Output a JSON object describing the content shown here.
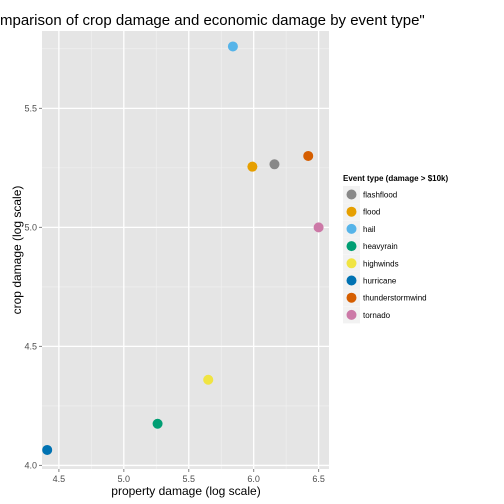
{
  "chart_data": {
    "type": "scatter",
    "title": "mparison of crop damage and economic damage by event type\"",
    "xlabel": "property damage (log scale)",
    "ylabel": "crop damage (log scale)",
    "xlim": [
      4.37,
      6.58
    ],
    "ylim": [
      3.985,
      5.825
    ],
    "x_ticks": [
      4.5,
      5.0,
      5.5,
      6.0,
      6.5
    ],
    "x_tick_labels": [
      "4.5",
      "5.0",
      "5.5",
      "6.0",
      "6.5"
    ],
    "y_ticks": [
      4.0,
      4.5,
      5.0,
      5.5
    ],
    "y_tick_labels": [
      "4.0",
      "4.5",
      "5.0",
      "5.5"
    ],
    "grid": true,
    "panel_background": "#e5e5e5",
    "legend": {
      "title": "Event type (damage > $10k)",
      "position": "right"
    },
    "series": [
      {
        "name": "flashflood",
        "color": "#888888",
        "x": 6.16,
        "y": 5.265
      },
      {
        "name": "flood",
        "color": "#e69f00",
        "x": 5.99,
        "y": 5.255
      },
      {
        "name": "hail",
        "color": "#56b4e9",
        "x": 5.84,
        "y": 5.76
      },
      {
        "name": "heavyrain",
        "color": "#009e73",
        "x": 5.26,
        "y": 4.175
      },
      {
        "name": "highwinds",
        "color": "#f0e442",
        "x": 5.65,
        "y": 4.36
      },
      {
        "name": "hurricane",
        "color": "#0072b2",
        "x": 4.41,
        "y": 4.065
      },
      {
        "name": "thunderstormwind",
        "color": "#d55e00",
        "x": 6.42,
        "y": 5.3
      },
      {
        "name": "tornado",
        "color": "#cc79a7",
        "x": 6.5,
        "y": 5.0
      }
    ]
  }
}
